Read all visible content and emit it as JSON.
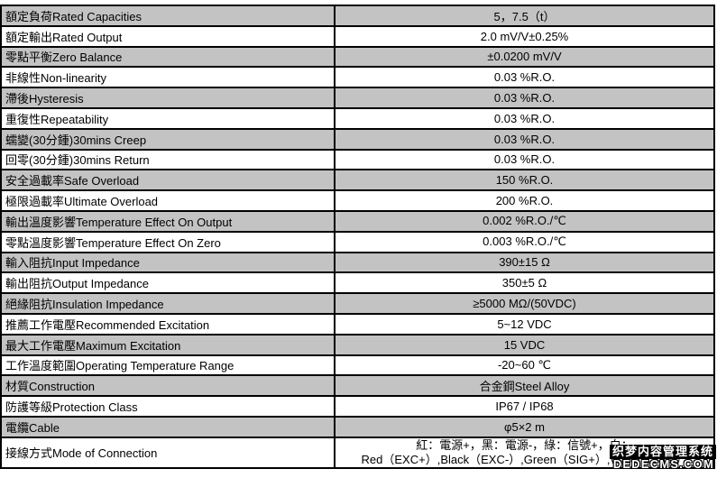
{
  "table": {
    "rows": [
      {
        "label": "額定負荷Rated Capacities",
        "value": "5，7.5（t）"
      },
      {
        "label": "額定輸出Rated Output",
        "value": "2.0 mV/V±0.25%"
      },
      {
        "label": "零點平衡Zero Balance",
        "value": "±0.0200 mV/V"
      },
      {
        "label": "非線性Non-linearity",
        "value": "0.03 %R.O."
      },
      {
        "label": "滯後Hysteresis",
        "value": "0.03 %R.O."
      },
      {
        "label": "重復性Repeatability",
        "value": "0.03 %R.O."
      },
      {
        "label": "蠕變(30分鍾)30mins Creep",
        "value": "0.03 %R.O."
      },
      {
        "label": "回零(30分鍾)30mins Return",
        "value": "0.03 %R.O."
      },
      {
        "label": "安全過載率Safe Overload",
        "value": "150 %R.O."
      },
      {
        "label": "極限過載率Ultimate Overload",
        "value": "200 %R.O."
      },
      {
        "label": "輸出溫度影響Temperature Effect On Output",
        "value": "0.002 %R.O./℃"
      },
      {
        "label": "零點溫度影響Temperature Effect On Zero",
        "value": "0.003 %R.O./℃"
      },
      {
        "label": "輸入阻抗Input Impedance",
        "value": "390±15 Ω"
      },
      {
        "label": "輸出阻抗Output Impedance",
        "value": "350±5 Ω"
      },
      {
        "label": "絕緣阻抗Insulation Impedance",
        "value": "≥5000 MΩ/(50VDC)"
      },
      {
        "label": "推薦工作電壓Recommended Excitation",
        "value": "5~12 VDC"
      },
      {
        "label": "最大工作電壓Maximum Excitation",
        "value": "15 VDC"
      },
      {
        "label": "工作溫度範圍Operating Temperature Range",
        "value": "-20~60 ℃"
      },
      {
        "label": "材質Construction",
        "value": "合金鋼Steel Alloy"
      },
      {
        "label": "防護等級Protection Class",
        "value": "IP67 / IP68"
      },
      {
        "label": "電纜Cable",
        "value": "φ5×2 m"
      },
      {
        "label": "接線方式Mode of Connection",
        "value_line1": "紅：電源+，黑：電源-，綠：信號+，白：",
        "value_line2": "Red（EXC+）,Black（EXC-）,Green（SIG+）,White（SIG-）"
      }
    ]
  },
  "watermark": {
    "line1": "织梦内容管理系统",
    "line2": "DEDECMS.COM"
  },
  "colors": {
    "row_shaded": "#c3c3c3",
    "row_plain": "#ffffff",
    "border": "#000000",
    "watermark_bg": "#000000",
    "watermark_text": "#ffffff"
  }
}
